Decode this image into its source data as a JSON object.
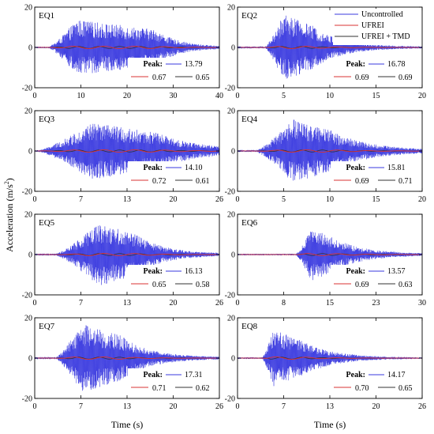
{
  "figure": {
    "ylabel": "Acceleration (m/s",
    "ylabel_sup": "2",
    "ylabel_close": ")",
    "xlabel": "Time (s)",
    "peak_label": "Peak:"
  },
  "legend": {
    "entries": [
      {
        "name": "Uncontrolled",
        "color": "#3a3adf"
      },
      {
        "name": "UFREI",
        "color": "#d93333"
      },
      {
        "name": "UFREI + TMD",
        "color": "#333333"
      }
    ]
  },
  "chart_data": [
    {
      "type": "line",
      "title": "EQ1",
      "xlim": [
        0,
        40
      ],
      "ylim": [
        -20,
        20
      ],
      "xticks": [
        "0",
        "10",
        "20",
        "30",
        "40"
      ],
      "yticks": [
        "20",
        "0",
        "-20"
      ],
      "peak": {
        "uncontrolled": "13.79",
        "ufrei": "0.67",
        "ufrei_tmd": "0.65"
      },
      "envelope": {
        "start": 3,
        "rise": 9,
        "end": 26,
        "decay": 5,
        "amplitude": 13.79,
        "freq": 1.0
      }
    },
    {
      "type": "line",
      "title": "EQ2",
      "xlim": [
        0,
        20
      ],
      "ylim": [
        -20,
        20
      ],
      "xticks": [
        "0",
        "5",
        "10",
        "15",
        "20"
      ],
      "yticks": [
        "20",
        "0",
        "-20"
      ],
      "peak": {
        "uncontrolled": "16.78",
        "ufrei": "0.69",
        "ufrei_tmd": "0.69"
      },
      "envelope": {
        "start": 3,
        "rise": 5,
        "end": 8,
        "decay": 3,
        "amplitude": 16.78,
        "freq": 2.0
      }
    },
    {
      "type": "line",
      "title": "EQ3",
      "xlim": [
        0,
        26
      ],
      "ylim": [
        -20,
        20
      ],
      "xticks": [
        "0",
        "7",
        "13",
        "20",
        "26"
      ],
      "yticks": [
        "20",
        "0",
        "-20"
      ],
      "peak": {
        "uncontrolled": "14.10",
        "ufrei": "0.72",
        "ufrei_tmd": "0.61"
      },
      "envelope": {
        "start": 0.5,
        "rise": 8,
        "end": 17,
        "decay": 6,
        "amplitude": 14.1,
        "freq": 2.0
      }
    },
    {
      "type": "line",
      "title": "EQ4",
      "xlim": [
        0,
        20
      ],
      "ylim": [
        -20,
        20
      ],
      "xticks": [
        "0",
        "5",
        "10",
        "15",
        "20"
      ],
      "yticks": [
        "20",
        "0",
        "-20"
      ],
      "peak": {
        "uncontrolled": "15.81",
        "ufrei": "0.69",
        "ufrei_tmd": "0.71"
      },
      "envelope": {
        "start": 2,
        "rise": 6,
        "end": 10,
        "decay": 4,
        "amplitude": 15.81,
        "freq": 2.0
      }
    },
    {
      "type": "line",
      "title": "EQ5",
      "xlim": [
        0,
        26
      ],
      "ylim": [
        -20,
        20
      ],
      "xticks": [
        "0",
        "7",
        "13",
        "20",
        "26"
      ],
      "yticks": [
        "20",
        "0",
        "-20"
      ],
      "peak": {
        "uncontrolled": "16.13",
        "ufrei": "0.65",
        "ufrei_tmd": "0.58"
      },
      "envelope": {
        "start": 3,
        "rise": 9,
        "end": 14,
        "decay": 4,
        "amplitude": 16.13,
        "freq": 1.6
      }
    },
    {
      "type": "line",
      "title": "EQ6",
      "xlim": [
        0,
        30
      ],
      "ylim": [
        -20,
        20
      ],
      "xticks": [
        "0",
        "8",
        "15",
        "23",
        "30"
      ],
      "yticks": [
        "20",
        "0",
        "-20"
      ],
      "peak": {
        "uncontrolled": "13.57",
        "ufrei": "0.69",
        "ufrei_tmd": "0.63"
      },
      "envelope": {
        "start": 9.5,
        "rise": 12,
        "end": 15,
        "decay": 5,
        "amplitude": 13.57,
        "freq": 2.0
      }
    },
    {
      "type": "line",
      "title": "EQ7",
      "xlim": [
        0,
        26
      ],
      "ylim": [
        -20,
        20
      ],
      "xticks": [
        "0",
        "7",
        "13",
        "20",
        "26"
      ],
      "yticks": [
        "20",
        "0",
        "-20"
      ],
      "peak": {
        "uncontrolled": "17.31",
        "ufrei": "0.71",
        "ufrei_tmd": "0.62"
      },
      "envelope": {
        "start": 3,
        "rise": 6.5,
        "end": 12,
        "decay": 4,
        "amplitude": 17.31,
        "freq": 1.8
      }
    },
    {
      "type": "line",
      "title": "EQ8",
      "xlim": [
        0,
        26
      ],
      "ylim": [
        -20,
        20
      ],
      "xticks": [
        "0",
        "7",
        "13",
        "20",
        "26"
      ],
      "yticks": [
        "20",
        "0",
        "-20"
      ],
      "peak": {
        "uncontrolled": "14.17",
        "ufrei": "0.70",
        "ufrei_tmd": "0.65"
      },
      "envelope": {
        "start": 3.5,
        "rise": 5,
        "end": 9,
        "decay": 4,
        "amplitude": 14.17,
        "freq": 2.0
      }
    }
  ]
}
